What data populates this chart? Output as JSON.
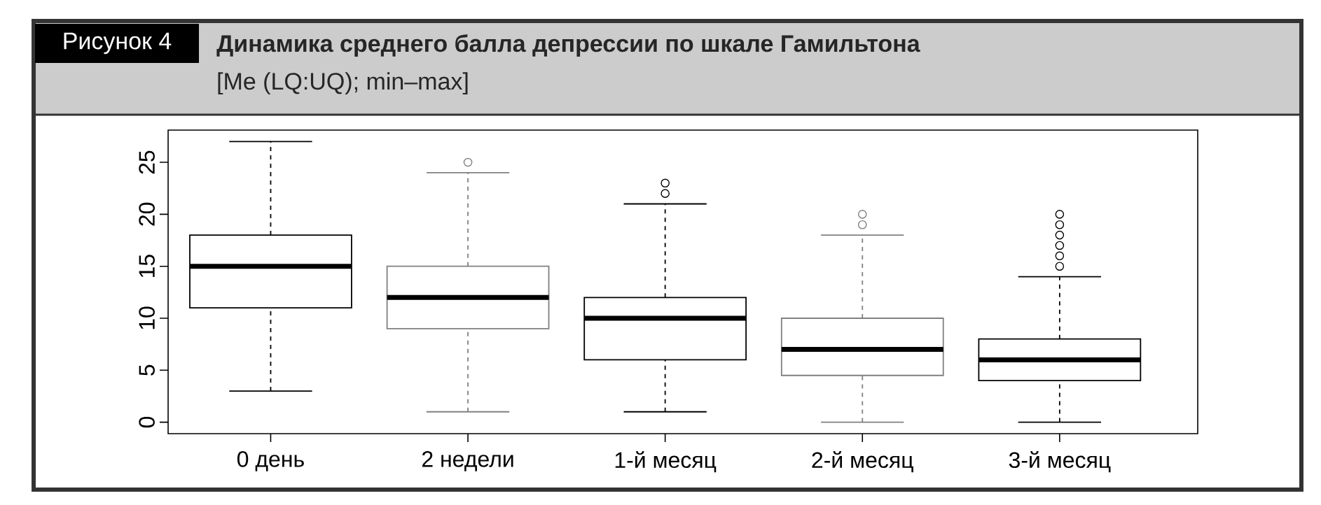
{
  "chart_data": {
    "type": "box",
    "annotations": [
      "Рисунок 4"
    ],
    "title": "Динамика среднего балла депрессии по шкале Гамильтона",
    "subtitle": "[Me (LQ:UQ); min–max]",
    "categories": [
      "0 день",
      "2 недели",
      "1-й месяц",
      "2-й месяц",
      "3-й месяц"
    ],
    "boxes": [
      {
        "low": 3,
        "q1": 11,
        "median": 15,
        "q3": 18,
        "high": 27
      },
      {
        "low": 1,
        "q1": 9,
        "median": 12,
        "q3": 15,
        "high": 24,
        "outliers": [
          25
        ]
      },
      {
        "low": 1,
        "q1": 6,
        "median": 10,
        "q3": 12,
        "high": 21,
        "outliers": [
          22,
          23
        ]
      },
      {
        "low": 0,
        "q1": 4.5,
        "median": 7,
        "q3": 10,
        "high": 18,
        "outliers": [
          19,
          20
        ]
      },
      {
        "low": 0,
        "q1": 4,
        "median": 6,
        "q3": 8,
        "high": 14,
        "outliers": [
          15,
          16,
          17,
          18,
          19,
          20
        ]
      }
    ],
    "colors": [
      "#000000",
      "#808080",
      "#000000",
      "#808080",
      "#000000"
    ],
    "ylim": [
      -1.1,
      28.1
    ],
    "yticks": [
      0,
      5,
      10,
      15,
      20,
      25
    ]
  }
}
